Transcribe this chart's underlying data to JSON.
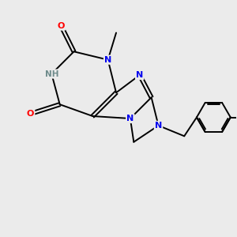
{
  "bg_color": "#ebebeb",
  "bond_color": "#000000",
  "N_color": "#0000ee",
  "O_color": "#ff0000",
  "H_color": "#6e8b8b",
  "line_width": 1.4,
  "figsize": [
    3.0,
    3.0
  ],
  "dpi": 100,
  "xlim": [
    0,
    10
  ],
  "ylim": [
    0,
    10
  ]
}
